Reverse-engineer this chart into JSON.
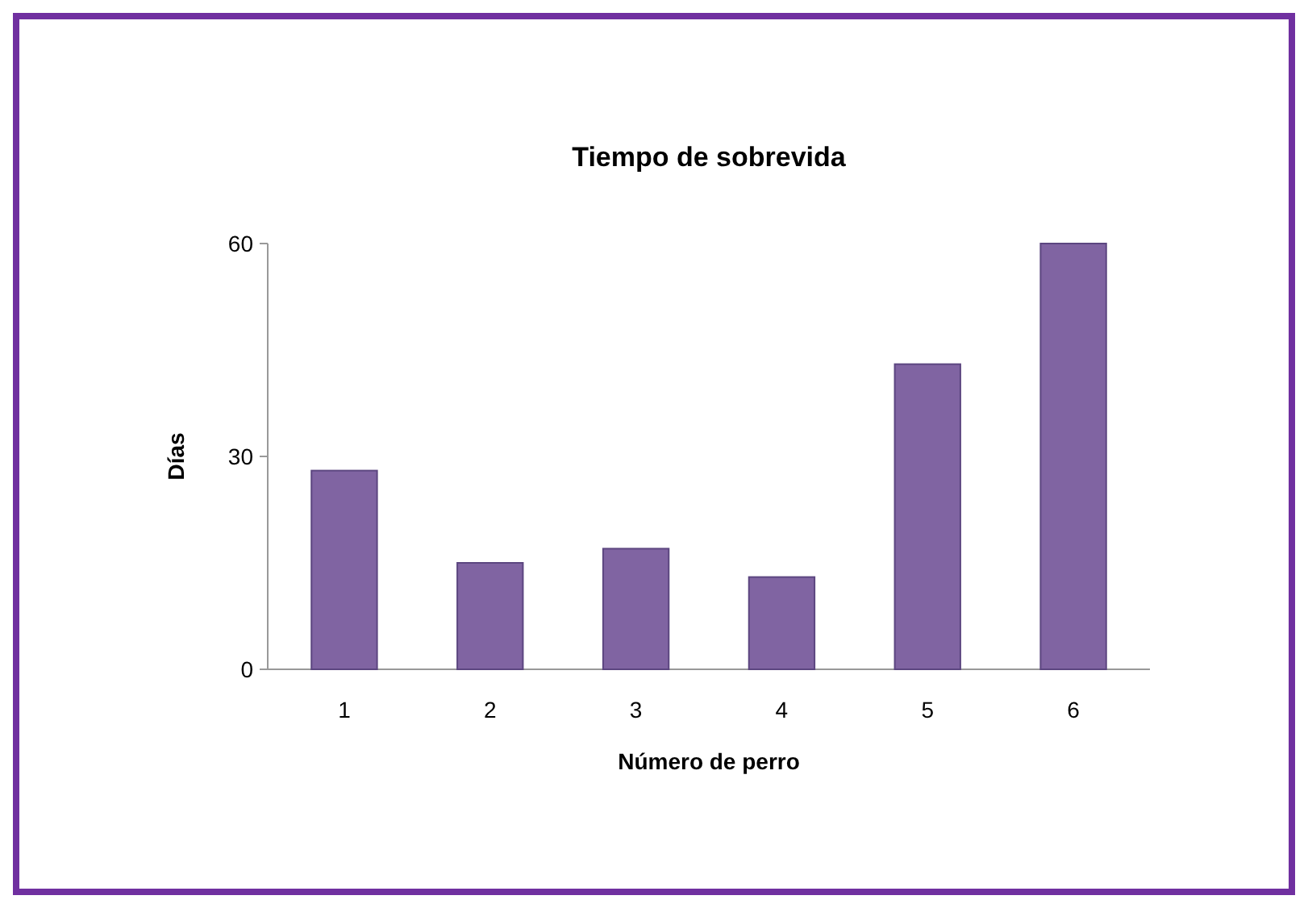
{
  "chart_data": {
    "type": "bar",
    "title": "Tiempo de sobrevida",
    "xlabel": "Número de perro",
    "ylabel": "Días",
    "categories": [
      "1",
      "2",
      "3",
      "4",
      "5",
      "6"
    ],
    "values": [
      28,
      15,
      17,
      13,
      43,
      60
    ],
    "color": "#8064a2",
    "ylim": [
      0,
      60
    ],
    "yticks": [
      0,
      30,
      60
    ],
    "grid": false
  }
}
